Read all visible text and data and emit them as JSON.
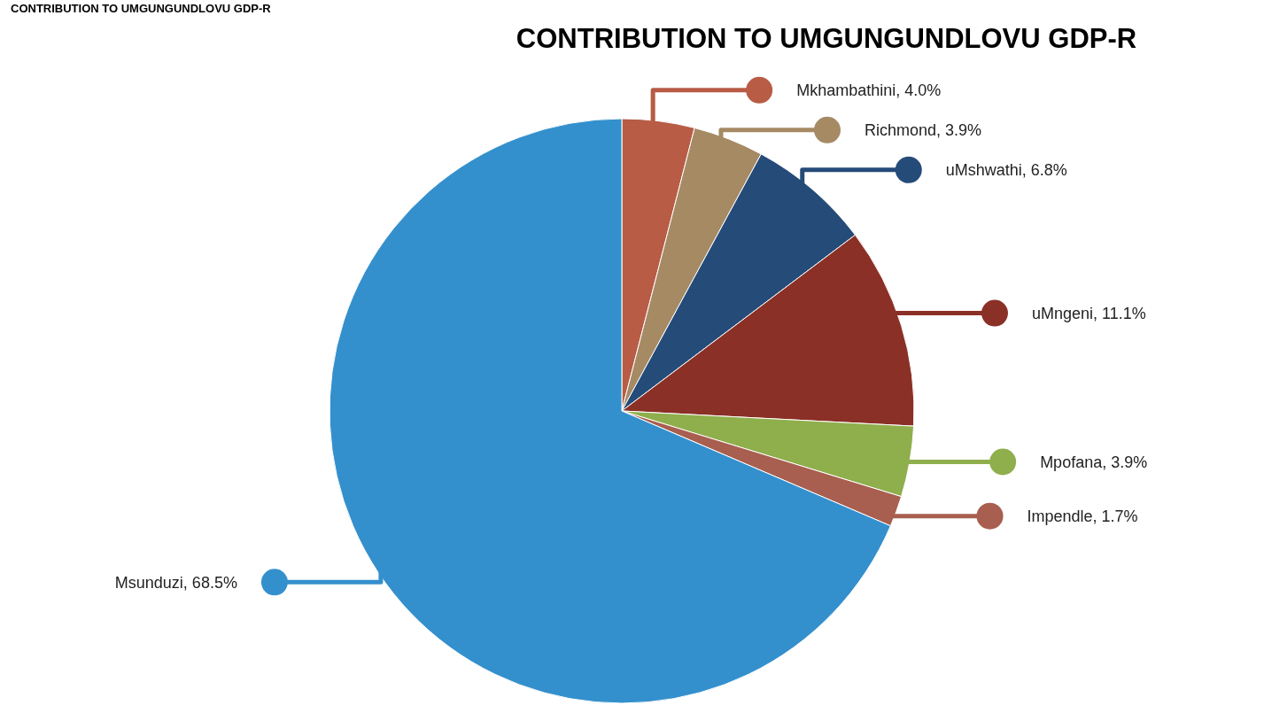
{
  "chart_data": {
    "type": "pie",
    "title": "CONTRIBUTION TO UMGUNGUNDLOVU GDP-R",
    "annotations": [
      "CONTRIBUTION TO UMGUNGUNDLOVU GDP-R"
    ],
    "categories": [
      "Mkhambathini",
      "Richmond",
      "uMshwathi",
      "uMngeni",
      "Mpofana",
      "Impendle",
      "Msunduzi"
    ],
    "values": [
      4.0,
      3.9,
      6.8,
      11.1,
      3.9,
      1.7,
      68.5
    ],
    "value_labels": [
      "4.0%",
      "3.9%",
      "6.8%",
      "11.1%",
      "3.9%",
      "1.7%",
      "68.5%"
    ],
    "colors": [
      "#b85c45",
      "#a68a64",
      "#254b79",
      "#8b3026",
      "#8fae4c",
      "#a85f4f",
      "#3490cd"
    ],
    "legend": "right"
  }
}
